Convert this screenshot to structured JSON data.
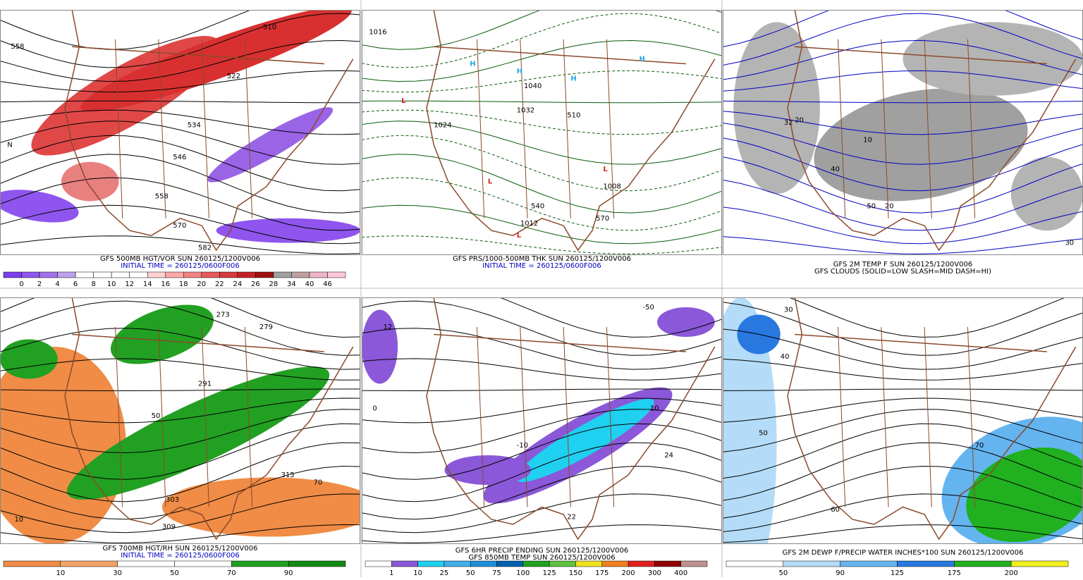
{
  "panels": [
    {
      "caption": [
        "GFS 500MB HGT/VOR SUN 260125/1200V006",
        "INITIAL TIME = 260125/0600F006"
      ],
      "colorbar": {
        "labels": [
          "0",
          "2",
          "4",
          "6",
          "8",
          "10",
          "12",
          "14",
          "16",
          "18",
          "20",
          "22",
          "24",
          "26",
          "28",
          "34",
          "40",
          "46"
        ],
        "colors": [
          "#7b3ff0",
          "#8f55ee",
          "#a072ea",
          "#bba2ee",
          "#ffffff",
          "#ffffff",
          "#ffffff",
          "#ffffff",
          "#ffd2d2",
          "#ffa8a8",
          "#f58282",
          "#e65a5a",
          "#d63c3c",
          "#c42222",
          "#a01010",
          "#a0a0a0",
          "#c0a0a0",
          "#f0b4c8",
          "#ffc8d8"
        ]
      },
      "map_labels": [
        "558",
        "510",
        "522",
        "534",
        "546",
        "558",
        "570",
        "582",
        "N"
      ]
    },
    {
      "caption": [
        "GFS PRS/1000-500MB THK SUN 260125/1200V006",
        "INITIAL TIME = 260125/0600F006"
      ],
      "map_labels": [
        "H",
        "H",
        "H",
        "H",
        "L",
        "L",
        "L",
        "L",
        "1040",
        "1032",
        "1024",
        "1016",
        "1008",
        "1012",
        "510",
        "540",
        "570"
      ]
    },
    {
      "caption": [
        "GFS 2M TEMP F SUN 260125/1200V006",
        "GFS CLOUDS (SOLID=LOW SLASH=MID DASH=HI)"
      ],
      "map_labels": [
        "20",
        "32",
        "40",
        "50",
        "10",
        "20",
        "30"
      ]
    },
    {
      "caption": [
        "GFS 700MB HGT/RH SUN 260125/1200V006",
        "INITIAL TIME = 260125/0600F006"
      ],
      "colorbar": {
        "labels": [
          "10",
          "30",
          "50",
          "70",
          "90"
        ],
        "colors": [
          "#f08c46",
          "#f4a468",
          "#ffffff",
          "#ffffff",
          "#22a022",
          "#138a13"
        ]
      },
      "map_labels": [
        "10",
        "50",
        "70",
        "273",
        "279",
        "291",
        "303",
        "315",
        "309"
      ]
    },
    {
      "caption": [
        "GFS 6HR PRECIP ENDING SUN 260125/1200V006",
        "GFS 850MB TEMP SUN 260125/1200V006"
      ],
      "colorbar": {
        "labels": [
          "1",
          "10",
          "25",
          "50",
          "75",
          "100",
          "125",
          "150",
          "175",
          "200",
          "300",
          "400"
        ],
        "colors": [
          "#ffffff",
          "#8a58d8",
          "#20d0f0",
          "#40b0e8",
          "#2090d8",
          "#0060b0",
          "#20a020",
          "#60c040",
          "#f0e020",
          "#f08020",
          "#e02020",
          "#900000",
          "#c09090"
        ]
      },
      "map_labels": [
        "-50",
        "-10",
        "0",
        "10",
        "12",
        "24",
        "22"
      ]
    },
    {
      "caption": [
        "GFS 2M DEWP F/PRECIP WATER INCHES*100 SUN 260125/1200V006"
      ],
      "colorbar": {
        "labels": [
          "50",
          "90",
          "125",
          "175",
          "200"
        ],
        "colors": [
          "#ffffff",
          "#b4dcf8",
          "#64b4f0",
          "#2878e0",
          "#20b020",
          "#f0f020"
        ]
      },
      "map_labels": [
        "30",
        "40",
        "50",
        "60",
        "70"
      ]
    }
  ]
}
